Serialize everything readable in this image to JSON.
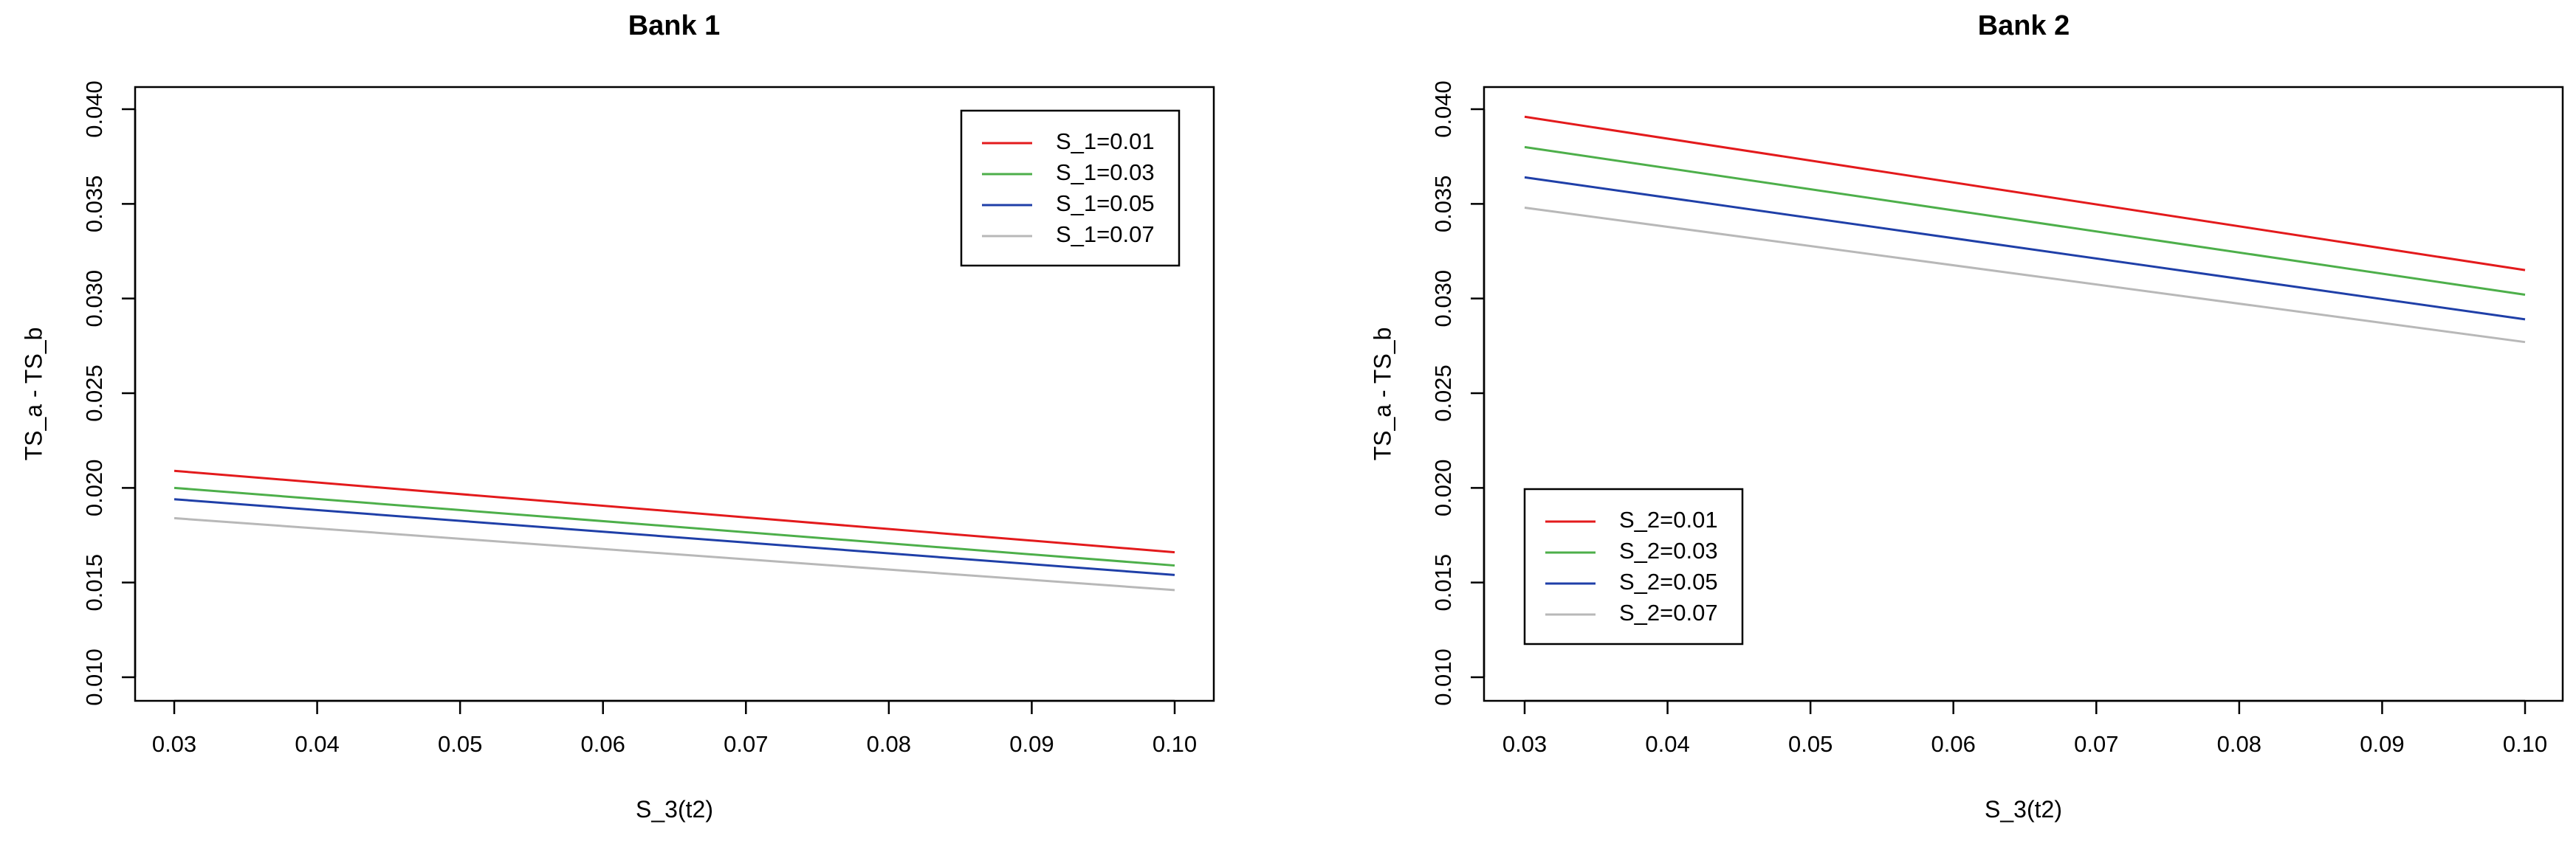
{
  "chart_data": [
    {
      "type": "line",
      "title": "Bank 1",
      "xlabel": "S_3(t2)",
      "ylabel": "TS_a - TS_b",
      "xlim": [
        0.03,
        0.1
      ],
      "ylim": [
        0.01,
        0.04
      ],
      "x_ticks": [
        "0.03",
        "0.04",
        "0.05",
        "0.06",
        "0.07",
        "0.08",
        "0.09",
        "0.10"
      ],
      "y_ticks": [
        "0.010",
        "0.015",
        "0.020",
        "0.025",
        "0.030",
        "0.035",
        "0.040"
      ],
      "grid": false,
      "legend_position": "top-right",
      "x": [
        0.03,
        0.1
      ],
      "series": [
        {
          "name": "S_1=0.01",
          "color": "#e31a1c",
          "values": [
            0.0209,
            0.0166
          ]
        },
        {
          "name": "S_1=0.03",
          "color": "#4daf4a",
          "values": [
            0.02,
            0.0159
          ]
        },
        {
          "name": "S_1=0.05",
          "color": "#1f3fa8",
          "values": [
            0.0194,
            0.0154
          ]
        },
        {
          "name": "S_1=0.07",
          "color": "#b8b8b8",
          "values": [
            0.0184,
            0.0146
          ]
        }
      ]
    },
    {
      "type": "line",
      "title": "Bank 2",
      "xlabel": "S_3(t2)",
      "ylabel": "TS_a - TS_b",
      "xlim": [
        0.03,
        0.1
      ],
      "ylim": [
        0.01,
        0.04
      ],
      "x_ticks": [
        "0.03",
        "0.04",
        "0.05",
        "0.06",
        "0.07",
        "0.08",
        "0.09",
        "0.10"
      ],
      "y_ticks": [
        "0.010",
        "0.015",
        "0.020",
        "0.025",
        "0.030",
        "0.035",
        "0.040"
      ],
      "grid": false,
      "legend_position": "bottom-left",
      "x": [
        0.03,
        0.1
      ],
      "series": [
        {
          "name": "S_2=0.01",
          "color": "#e31a1c",
          "values": [
            0.0396,
            0.0315
          ]
        },
        {
          "name": "S_2=0.03",
          "color": "#4daf4a",
          "values": [
            0.038,
            0.0302
          ]
        },
        {
          "name": "S_2=0.05",
          "color": "#1f3fa8",
          "values": [
            0.0364,
            0.0289
          ]
        },
        {
          "name": "S_2=0.07",
          "color": "#b8b8b8",
          "values": [
            0.0348,
            0.0277
          ]
        }
      ]
    }
  ]
}
